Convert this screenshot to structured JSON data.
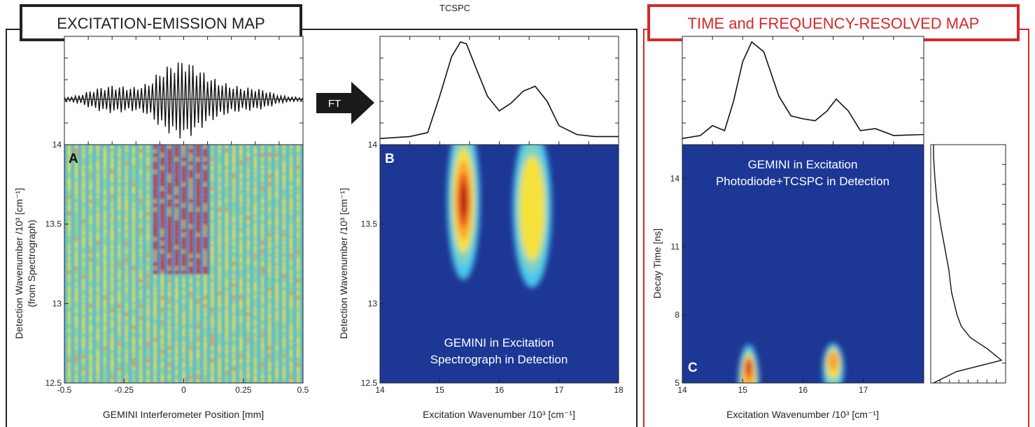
{
  "header": {
    "left_title": "EXCITATION-EMISSION MAP",
    "top_label": "TCSPC",
    "right_title": "TIME and FREQUENCY-RESOLVED MAP",
    "arrow_label": "FT"
  },
  "colors": {
    "accent_red": "#d9262a",
    "frame_dark": "#222222",
    "map_background": "#1d3795",
    "map_hot": "#d9261c",
    "map_warm": "#fde33b",
    "map_cool": "#4ac6ee"
  },
  "chart_data": [
    {
      "type": "heatmap",
      "panel": "A",
      "xlabel": "GEMINI Interferometer Position [mm]",
      "ylabel": "Detection Wavenumber /10³ [cm⁻¹]",
      "ylabel_line2": "(from Spectrograph)",
      "xlim": [
        -0.5,
        0.5
      ],
      "ylim": [
        12.5,
        14
      ],
      "xticks": [
        -0.5,
        -0.25,
        0,
        0.25,
        0.5
      ],
      "xtick_labels": [
        "-0.5",
        "-0.25",
        "0",
        "0.25",
        "0.5"
      ],
      "yticks": [
        12.5,
        13,
        13.5,
        14
      ],
      "ytick_labels": [
        "12.5",
        "13",
        "13.5",
        "14"
      ],
      "fringe_positions_mm": [
        -0.48,
        -0.45,
        -0.42,
        -0.39,
        -0.36,
        -0.33,
        -0.3,
        -0.27,
        -0.24,
        -0.21,
        -0.18,
        -0.15,
        -0.12,
        -0.09,
        -0.06,
        -0.03,
        0.0,
        0.03,
        0.06,
        0.09,
        0.12,
        0.15,
        0.18,
        0.21,
        0.24,
        0.27,
        0.3,
        0.33,
        0.36,
        0.39,
        0.42,
        0.45,
        0.48
      ],
      "core": {
        "x_range": [
          -0.12,
          0.09
        ],
        "y_range": [
          13.2,
          14.0
        ]
      },
      "top_trace": {
        "description": "interferogram",
        "x": [
          -0.5,
          -0.45,
          -0.4,
          -0.35,
          -0.3,
          -0.25,
          -0.2,
          -0.15,
          -0.1,
          -0.05,
          0.0,
          0.05,
          0.1,
          0.15,
          0.2,
          0.25,
          0.3,
          0.35,
          0.4,
          0.45,
          0.5
        ],
        "envelope": [
          0.05,
          0.08,
          0.2,
          0.3,
          0.35,
          0.32,
          0.3,
          0.4,
          0.7,
          0.9,
          1.0,
          0.85,
          0.6,
          0.45,
          0.35,
          0.3,
          0.28,
          0.22,
          0.1,
          0.06,
          0.04
        ]
      }
    },
    {
      "type": "heatmap",
      "panel": "B",
      "xlabel": "Excitation Wavenumber /10³ [cm⁻¹]",
      "ylabel": "Detection Wavenumber /10³ [cm⁻¹]",
      "xlim": [
        14,
        18
      ],
      "ylim": [
        12.5,
        14
      ],
      "xticks": [
        14,
        15,
        16,
        17,
        18
      ],
      "xtick_labels": [
        "14",
        "15",
        "16",
        "17",
        "18"
      ],
      "yticks": [
        12.5,
        13,
        13.5,
        14
      ],
      "ytick_labels": [
        "12.5",
        "13",
        "13.5",
        "14"
      ],
      "annotation": [
        "GEMINI in Excitation",
        "Spectrograph in Detection"
      ],
      "peaks": [
        {
          "x": 15.4,
          "y": 13.65,
          "x_spread": 0.55,
          "y_spread": 1.0,
          "level": 1.0
        },
        {
          "x": 16.55,
          "y": 13.6,
          "x_spread": 0.65,
          "y_spread": 1.0,
          "level": 0.45
        }
      ],
      "top_trace": {
        "description": "excitation spectrum",
        "x": [
          14.0,
          14.5,
          14.8,
          15.0,
          15.2,
          15.35,
          15.45,
          15.6,
          15.8,
          16.0,
          16.2,
          16.4,
          16.6,
          16.8,
          17.0,
          17.3,
          17.6,
          18.0
        ],
        "y": [
          0.02,
          0.04,
          0.08,
          0.45,
          0.85,
          1.0,
          0.98,
          0.75,
          0.45,
          0.3,
          0.38,
          0.5,
          0.55,
          0.4,
          0.15,
          0.06,
          0.04,
          0.04
        ]
      }
    },
    {
      "type": "heatmap",
      "panel": "C",
      "xlabel": "Excitation Wavenumber /10³ [cm⁻¹]",
      "ylabel": "Decay Time [ns]",
      "xlim": [
        14,
        18
      ],
      "ylim": [
        5,
        15.5
      ],
      "xticks": [
        14,
        15,
        16,
        17
      ],
      "xtick_labels": [
        "14",
        "15",
        "16",
        "17"
      ],
      "yticks": [
        5,
        8,
        11,
        14
      ],
      "ytick_labels": [
        "5",
        "8",
        "11",
        "14"
      ],
      "annotation": [
        "GEMINI in Excitation",
        "Photodiode+TCSPC in Detection"
      ],
      "peaks": [
        {
          "x": 15.1,
          "y": 6.0,
          "x_spread": 0.35,
          "y_spread": 3.5,
          "level": 1.0
        },
        {
          "x": 16.5,
          "y": 6.3,
          "x_spread": 0.35,
          "y_spread": 2.3,
          "level": 0.55
        }
      ],
      "top_trace": {
        "description": "excitation spectrum",
        "x": [
          14.0,
          14.3,
          14.5,
          14.7,
          14.85,
          15.0,
          15.15,
          15.35,
          15.6,
          15.8,
          16.0,
          16.2,
          16.4,
          16.55,
          16.75,
          16.95,
          17.2,
          17.5,
          18.0
        ],
        "y": [
          0.02,
          0.05,
          0.15,
          0.1,
          0.4,
          0.8,
          1.0,
          0.9,
          0.45,
          0.25,
          0.22,
          0.2,
          0.3,
          0.42,
          0.3,
          0.1,
          0.12,
          0.05,
          0.06
        ]
      },
      "right_trace": {
        "description": "decay profile",
        "time_ns": [
          5.0,
          5.5,
          6.0,
          6.5,
          7.0,
          7.5,
          8.0,
          9.0,
          10.0,
          11.0,
          12.0,
          13.0,
          14.0,
          15.0,
          15.5
        ],
        "intensity": [
          0.02,
          0.35,
          1.0,
          0.8,
          0.55,
          0.42,
          0.36,
          0.28,
          0.24,
          0.18,
          0.12,
          0.07,
          0.04,
          0.02,
          0.02
        ]
      }
    }
  ]
}
